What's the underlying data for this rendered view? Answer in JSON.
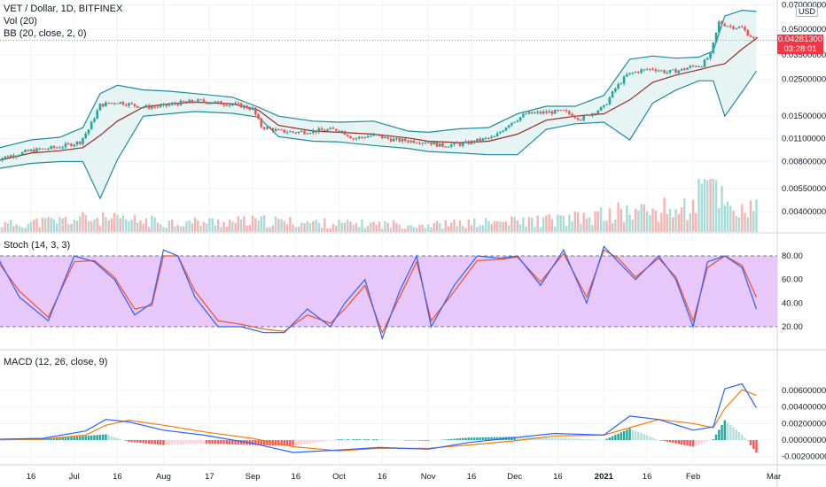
{
  "window": {
    "title": "VET / Dollar, 1D, BITFINEX"
  },
  "legend": {
    "main": "VET / Dollar, 1D, BITFINEX",
    "vol": "Vol (20)",
    "bb": "BB (20, close, 2, 0)",
    "stoch": "Stoch (14, 3, 3)",
    "macd": "MACD (12, 26, close, 9)"
  },
  "price_badge": {
    "price": "0.04281300",
    "timer": "03:28:01",
    "color": "#f23645"
  },
  "currency_label": "USD",
  "colors": {
    "up": "#26a69a",
    "down": "#ef5350",
    "bb_band": "#1f8b9b",
    "bb_basis": "#9c2a2a",
    "bb_fill": "#e6f5f4",
    "stoch_k": "#2962ff",
    "stoch_d": "#f4511e",
    "stoch_fill": "#e8c7fb",
    "macd": "#2962ff",
    "signal": "#f57c00"
  },
  "chart_data": [
    {
      "type": "line",
      "title": "VET / Dollar, 1D, BITFINEX",
      "scale": "log",
      "y_ticks": [
        "0.07000000",
        "0.05000000",
        "0.03500000",
        "0.02500000",
        "0.01500000",
        "0.01100000",
        "0.00800000",
        "0.00550000",
        "0.00400000"
      ],
      "x_ticks": [
        "16",
        "Jul",
        "16",
        "Aug",
        "17",
        "Sep",
        "16",
        "Oct",
        "16",
        "Nov",
        "16",
        "Dec",
        "16",
        "2021",
        "16",
        "Feb",
        "Mar"
      ],
      "x_tick_dates": [
        "2020-06-16",
        "2020-07-01",
        "2020-07-16",
        "2020-08-01",
        "2020-08-17",
        "2020-09-01",
        "2020-09-16",
        "2020-10-01",
        "2020-10-16",
        "2020-11-01",
        "2020-11-16",
        "2020-12-01",
        "2020-12-16",
        "2021-01-01",
        "2021-01-16",
        "2021-02-01",
        "2021-03-01"
      ],
      "series": [
        {
          "name": "VET / Dollar",
          "dates": [
            "2020-06-03",
            "2020-06-16",
            "2020-06-26",
            "2020-07-03",
            "2020-07-06",
            "2020-07-10",
            "2020-07-16",
            "2020-07-25",
            "2020-08-01",
            "2020-08-08",
            "2020-08-14",
            "2020-08-20",
            "2020-08-27",
            "2020-09-01",
            "2020-09-04",
            "2020-09-10",
            "2020-09-16",
            "2020-09-24",
            "2020-10-01",
            "2020-10-06",
            "2020-10-13",
            "2020-10-20",
            "2020-10-28",
            "2020-11-01",
            "2020-11-05",
            "2020-11-13",
            "2020-11-19",
            "2020-11-24",
            "2020-11-29",
            "2020-12-05",
            "2020-12-12",
            "2020-12-18",
            "2020-12-24",
            "2021-01-01",
            "2021-01-05",
            "2021-01-09",
            "2021-01-13",
            "2021-01-18",
            "2021-01-23",
            "2021-01-28",
            "2021-02-01",
            "2021-02-04",
            "2021-02-07",
            "2021-02-10",
            "2021-02-14",
            "2021-02-18",
            "2021-02-20",
            "2021-02-22",
            "2021-02-23"
          ],
          "close": [
            0.0082,
            0.0093,
            0.0098,
            0.0105,
            0.0125,
            0.0175,
            0.0183,
            0.017,
            0.0172,
            0.0182,
            0.0185,
            0.018,
            0.0175,
            0.0166,
            0.013,
            0.0122,
            0.012,
            0.0123,
            0.0125,
            0.011,
            0.0115,
            0.0108,
            0.0106,
            0.0105,
            0.01,
            0.0102,
            0.0108,
            0.0112,
            0.0135,
            0.0155,
            0.0158,
            0.016,
            0.0145,
            0.017,
            0.022,
            0.0265,
            0.028,
            0.029,
            0.0275,
            0.0285,
            0.03,
            0.0305,
            0.035,
            0.055,
            0.052,
            0.051,
            0.047,
            0.044,
            0.0428
          ]
        },
        {
          "name": "BB Upper",
          "dates": [
            "2020-06-03",
            "2020-06-16",
            "2020-06-26",
            "2020-07-04",
            "2020-07-10",
            "2020-07-16",
            "2020-07-25",
            "2020-08-03",
            "2020-08-12",
            "2020-08-25",
            "2020-09-03",
            "2020-09-10",
            "2020-09-22",
            "2020-10-01",
            "2020-10-13",
            "2020-10-25",
            "2020-11-01",
            "2020-11-12",
            "2020-11-22",
            "2020-12-02",
            "2020-12-12",
            "2020-12-22",
            "2021-01-01",
            "2021-01-10",
            "2021-01-18",
            "2021-01-26",
            "2021-02-03",
            "2021-02-08",
            "2021-02-12",
            "2021-02-18",
            "2021-02-23"
          ],
          "values": [
            0.0095,
            0.0108,
            0.0112,
            0.0128,
            0.0205,
            0.023,
            0.0216,
            0.0212,
            0.0205,
            0.0195,
            0.017,
            0.015,
            0.014,
            0.0138,
            0.014,
            0.0122,
            0.012,
            0.0126,
            0.0128,
            0.0155,
            0.0172,
            0.0172,
            0.02,
            0.033,
            0.0345,
            0.0335,
            0.034,
            0.037,
            0.06,
            0.065,
            0.064
          ]
        },
        {
          "name": "BB Lower",
          "dates": [
            "2020-06-03",
            "2020-06-16",
            "2020-06-26",
            "2020-07-04",
            "2020-07-10",
            "2020-07-16",
            "2020-07-25",
            "2020-08-03",
            "2020-08-12",
            "2020-08-25",
            "2020-09-03",
            "2020-09-10",
            "2020-09-22",
            "2020-10-01",
            "2020-10-13",
            "2020-10-25",
            "2020-11-01",
            "2020-11-12",
            "2020-11-22",
            "2020-12-02",
            "2020-12-12",
            "2020-12-22",
            "2021-01-01",
            "2021-01-10",
            "2021-01-18",
            "2021-01-26",
            "2021-02-03",
            "2021-02-08",
            "2021-02-12",
            "2021-02-18",
            "2021-02-23"
          ],
          "values": [
            0.0072,
            0.0078,
            0.008,
            0.008,
            0.0048,
            0.0082,
            0.015,
            0.0155,
            0.016,
            0.0156,
            0.0148,
            0.0113,
            0.0106,
            0.0105,
            0.01,
            0.0096,
            0.0092,
            0.009,
            0.0088,
            0.0088,
            0.0125,
            0.0135,
            0.0138,
            0.0108,
            0.018,
            0.0215,
            0.0245,
            0.0245,
            0.015,
            0.021,
            0.028
          ]
        },
        {
          "name": "BB Basis",
          "dates": [
            "2020-06-03",
            "2020-06-16",
            "2020-06-26",
            "2020-07-04",
            "2020-07-10",
            "2020-07-16",
            "2020-07-25",
            "2020-08-03",
            "2020-08-12",
            "2020-08-25",
            "2020-09-03",
            "2020-09-10",
            "2020-09-22",
            "2020-10-01",
            "2020-10-13",
            "2020-10-25",
            "2020-11-01",
            "2020-11-12",
            "2020-11-22",
            "2020-12-02",
            "2020-12-12",
            "2020-12-22",
            "2021-01-01",
            "2021-01-10",
            "2021-01-18",
            "2021-01-26",
            "2021-02-03",
            "2021-02-08",
            "2021-02-12",
            "2021-02-18",
            "2021-02-23"
          ],
          "values": [
            0.008,
            0.009,
            0.0093,
            0.0097,
            0.0115,
            0.014,
            0.017,
            0.0178,
            0.0182,
            0.0178,
            0.0163,
            0.0132,
            0.0122,
            0.012,
            0.0117,
            0.0111,
            0.0106,
            0.0104,
            0.0106,
            0.0117,
            0.0142,
            0.015,
            0.0155,
            0.0188,
            0.024,
            0.0265,
            0.0285,
            0.03,
            0.031,
            0.038,
            0.044
          ]
        }
      ],
      "volume": {
        "dates": [
          "2020-06-03",
          "2020-07-05",
          "2020-08-05",
          "2020-09-05",
          "2020-10-05",
          "2020-11-05",
          "2020-12-05",
          "2020-12-25",
          "2021-01-05",
          "2021-01-20",
          "2021-02-01",
          "2021-02-05",
          "2021-02-08",
          "2021-02-12",
          "2021-02-18"
        ],
        "relative": [
          0.12,
          0.25,
          0.18,
          0.2,
          0.15,
          0.14,
          0.2,
          0.25,
          0.35,
          0.4,
          0.45,
          0.95,
          1.0,
          0.55,
          0.4
        ]
      }
    },
    {
      "type": "line",
      "title": "Stoch (14, 3, 3)",
      "y_ticks": [
        "80.00",
        "60.00",
        "40.00",
        "20.00"
      ],
      "band": [
        20,
        80
      ],
      "series": [
        {
          "name": "%K",
          "dates": [
            "2020-06-03",
            "2020-06-12",
            "2020-06-22",
            "2020-07-01",
            "2020-07-08",
            "2020-07-15",
            "2020-07-22",
            "2020-07-28",
            "2020-08-01",
            "2020-08-06",
            "2020-08-12",
            "2020-08-20",
            "2020-08-28",
            "2020-09-05",
            "2020-09-12",
            "2020-09-20",
            "2020-09-28",
            "2020-10-03",
            "2020-10-10",
            "2020-10-16",
            "2020-10-22",
            "2020-10-28",
            "2020-11-02",
            "2020-11-10",
            "2020-11-18",
            "2020-11-26",
            "2020-12-02",
            "2020-12-10",
            "2020-12-18",
            "2020-12-26",
            "2021-01-01",
            "2021-01-06",
            "2021-01-12",
            "2021-01-20",
            "2021-01-26",
            "2021-02-01",
            "2021-02-06",
            "2021-02-12",
            "2021-02-18",
            "2021-02-23"
          ],
          "values": [
            85,
            45,
            25,
            80,
            75,
            60,
            30,
            40,
            85,
            80,
            45,
            20,
            20,
            15,
            15,
            35,
            20,
            40,
            60,
            10,
            50,
            80,
            20,
            55,
            80,
            78,
            80,
            55,
            85,
            40,
            88,
            75,
            60,
            80,
            60,
            20,
            75,
            80,
            70,
            35
          ]
        },
        {
          "name": "%D",
          "dates": [
            "2020-06-03",
            "2020-06-12",
            "2020-06-22",
            "2020-07-01",
            "2020-07-08",
            "2020-07-15",
            "2020-07-22",
            "2020-07-28",
            "2020-08-01",
            "2020-08-06",
            "2020-08-12",
            "2020-08-20",
            "2020-08-28",
            "2020-09-05",
            "2020-09-12",
            "2020-09-20",
            "2020-09-28",
            "2020-10-03",
            "2020-10-10",
            "2020-10-16",
            "2020-10-22",
            "2020-10-28",
            "2020-11-02",
            "2020-11-10",
            "2020-11-18",
            "2020-11-26",
            "2020-12-02",
            "2020-12-10",
            "2020-12-18",
            "2020-12-26",
            "2021-01-01",
            "2021-01-06",
            "2021-01-12",
            "2021-01-20",
            "2021-01-26",
            "2021-02-01",
            "2021-02-06",
            "2021-02-12",
            "2021-02-18",
            "2021-02-23"
          ],
          "values": [
            80,
            50,
            28,
            75,
            76,
            62,
            35,
            38,
            80,
            80,
            50,
            25,
            22,
            18,
            16,
            30,
            23,
            35,
            55,
            15,
            45,
            75,
            25,
            50,
            76,
            77,
            79,
            58,
            82,
            45,
            85,
            78,
            62,
            78,
            62,
            25,
            70,
            80,
            72,
            45
          ]
        }
      ]
    },
    {
      "type": "line",
      "title": "MACD (12, 26, close, 9)",
      "y_ticks": [
        "0.00600000",
        "0.00400000",
        "0.00200000",
        "0.00000000",
        "-0.00200000"
      ],
      "series": [
        {
          "name": "MACD",
          "dates": [
            "2020-06-03",
            "2020-06-20",
            "2020-07-05",
            "2020-07-12",
            "2020-07-20",
            "2020-08-01",
            "2020-08-15",
            "2020-09-01",
            "2020-09-15",
            "2020-10-01",
            "2020-10-15",
            "2020-11-01",
            "2020-11-15",
            "2020-12-01",
            "2020-12-15",
            "2021-01-01",
            "2021-01-10",
            "2021-01-20",
            "2021-02-01",
            "2021-02-08",
            "2021-02-12",
            "2021-02-18",
            "2021-02-23"
          ],
          "values": [
            0.0001,
            0.0002,
            0.0011,
            0.0025,
            0.0022,
            0.0012,
            0.0006,
            -0.0004,
            -0.0015,
            -0.0012,
            -0.0009,
            -0.0011,
            -0.0003,
            0.0003,
            0.0008,
            0.0006,
            0.0029,
            0.0025,
            0.0012,
            0.0016,
            0.0062,
            0.0068,
            0.0039
          ]
        },
        {
          "name": "Signal",
          "dates": [
            "2020-06-03",
            "2020-06-20",
            "2020-07-05",
            "2020-07-12",
            "2020-07-20",
            "2020-08-01",
            "2020-08-15",
            "2020-09-01",
            "2020-09-15",
            "2020-10-01",
            "2020-10-15",
            "2020-11-01",
            "2020-11-15",
            "2020-12-01",
            "2020-12-15",
            "2021-01-01",
            "2021-01-10",
            "2021-01-20",
            "2021-02-01",
            "2021-02-08",
            "2021-02-12",
            "2021-02-18",
            "2021-02-23"
          ],
          "values": [
            0.0001,
            0.0001,
            0.0006,
            0.0018,
            0.0024,
            0.0018,
            0.001,
            0.0002,
            -0.0008,
            -0.0013,
            -0.001,
            -0.001,
            -0.0006,
            -0.0001,
            0.0005,
            0.0006,
            0.0015,
            0.0025,
            0.002,
            0.0015,
            0.0038,
            0.0061,
            0.0054
          ]
        }
      ]
    }
  ]
}
